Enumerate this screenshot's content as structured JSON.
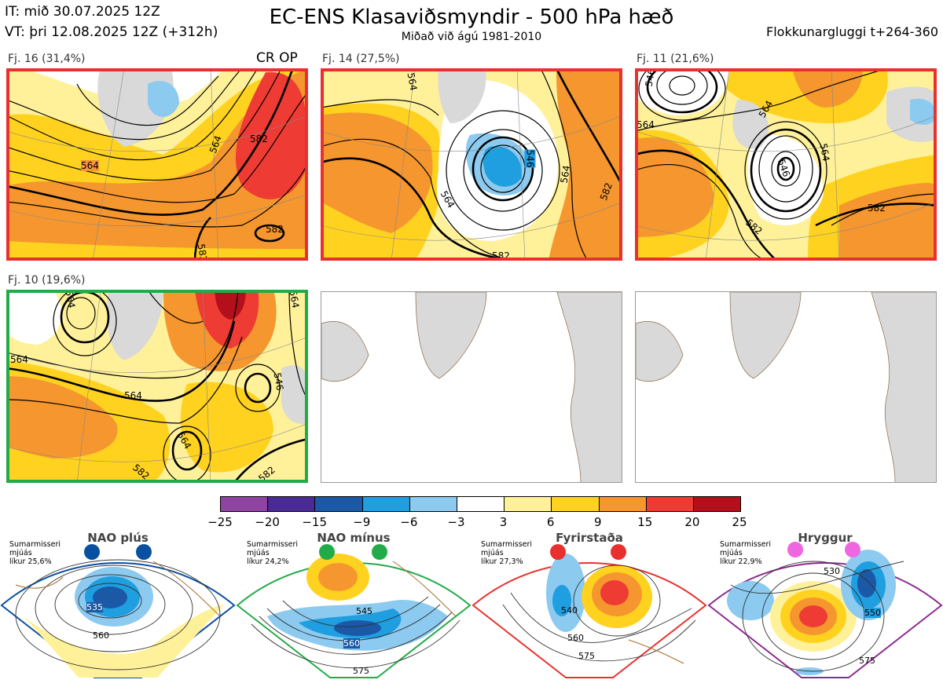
{
  "header": {
    "it_line": "IT: mið 30.07.2025 12Z",
    "vt_line": "VT: þri 12.08.2025 12Z  (+312h)",
    "title": "EC-ENS Klasaviðsmyndir - 500 hPa hæð",
    "subtitle": "Miðað við ágú 1981-2010",
    "window": "Flokkunargluggi t+264-360"
  },
  "panels": [
    {
      "label": "Fj. 16 (31,4%)",
      "tag": "CR OP",
      "border": "#e8312f",
      "contours": [
        "564",
        "582",
        "564",
        "582",
        "582"
      ]
    },
    {
      "label": "Fj. 14 (27,5%)",
      "border": "#e8312f",
      "contours": [
        "564",
        "546",
        "564",
        "564",
        "582",
        "582"
      ]
    },
    {
      "label": "Fj. 11 (21,6%)",
      "border": "#e8312f",
      "contours": [
        "546",
        "564",
        "564",
        "546",
        "582",
        "582",
        "564"
      ]
    },
    {
      "label": "Fj. 10 (19,6%)",
      "border": "#22ab48",
      "contours": [
        "564",
        "564",
        "564",
        "582",
        "582",
        "564",
        "546",
        "564"
      ]
    }
  ],
  "colorbar": {
    "ticks": [
      "−25",
      "−20",
      "−15",
      "−9",
      "−6",
      "−3",
      "3",
      "6",
      "9",
      "15",
      "20",
      "25"
    ],
    "colors": [
      "#8e44a0",
      "#4a2a95",
      "#1b58a6",
      "#1f9ee0",
      "#8ccaf0",
      "#ffffff",
      "#fff19a",
      "#ffd21f",
      "#f5962f",
      "#ee3b33",
      "#b3101b"
    ]
  },
  "regimes": [
    {
      "name": "NAO plús",
      "season": "Sumarmisseri",
      "smooth": "mjúás",
      "prob": "líkur 25,6%",
      "color": "#0a50a0",
      "contours": [
        "535",
        "560"
      ]
    },
    {
      "name": "NAO mínus",
      "season": "Sumarmisseri",
      "smooth": "mjúás",
      "prob": "líkur 24,2%",
      "color": "#22ab48",
      "contours": [
        "545",
        "560",
        "575"
      ]
    },
    {
      "name": "Fyrirstaða",
      "season": "Sumarmisseri",
      "smooth": "mjúás",
      "prob": "líkur 27,3%",
      "color": "#e8312f",
      "contours": [
        "540",
        "560",
        "575"
      ]
    },
    {
      "name": "Hryggur",
      "season": "Sumarmisseri",
      "smooth": "mjúás",
      "prob": "líkur 22,9%",
      "color": "#ee66e0",
      "contours": [
        "530",
        "550",
        "575"
      ]
    }
  ],
  "chart_data": {
    "type": "heatmap",
    "title": "EC-ENS Klasaviðsmyndir - 500 hPa hæð",
    "subtitle": "Miðað við ágú 1981-2010",
    "color_scale_bins": [
      -25,
      -20,
      -15,
      -9,
      -6,
      -3,
      3,
      6,
      9,
      15,
      20,
      25
    ],
    "clusters": [
      {
        "name": "Fj. 16",
        "probability_pct": 31.4
      },
      {
        "name": "Fj. 14",
        "probability_pct": 27.5
      },
      {
        "name": "Fj. 11",
        "probability_pct": 21.6
      },
      {
        "name": "Fj. 10",
        "probability_pct": 19.6
      }
    ],
    "regime_probabilities_pct": [
      {
        "name": "NAO plús",
        "value": 25.6
      },
      {
        "name": "NAO mínus",
        "value": 24.2
      },
      {
        "name": "Fyrirstaða",
        "value": 27.3
      },
      {
        "name": "Hryggur",
        "value": 22.9
      }
    ]
  }
}
